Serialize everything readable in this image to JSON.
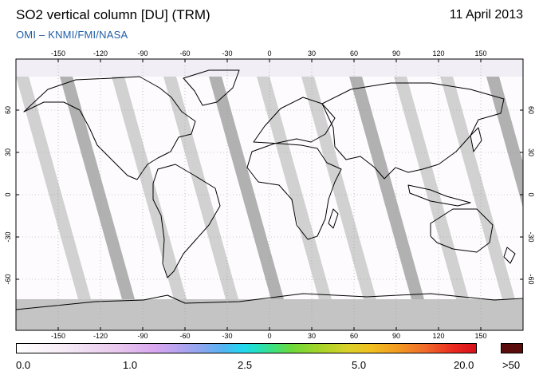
{
  "header": {
    "title": "SO2 vertical column [DU] (TRM)",
    "date": "11 April 2013",
    "credit": "OMI  –  KNMI/FMI/NASA"
  },
  "map": {
    "lon_ticks": [
      "-150",
      "-120",
      "-90",
      "-60",
      "-30",
      "0",
      "30",
      "60",
      "90",
      "120",
      "150"
    ],
    "lat_ticks": [
      "60",
      "30",
      "0",
      "-30",
      "-60"
    ],
    "no_data_color": "#cccccc",
    "land_outline_color": "#000000"
  },
  "colorbar": {
    "labels": [
      "0.0",
      "1.0",
      "2.5",
      "5.0",
      "20.0"
    ],
    "overflow_label": ">50",
    "overflow_color": "#5a0c0c"
  }
}
